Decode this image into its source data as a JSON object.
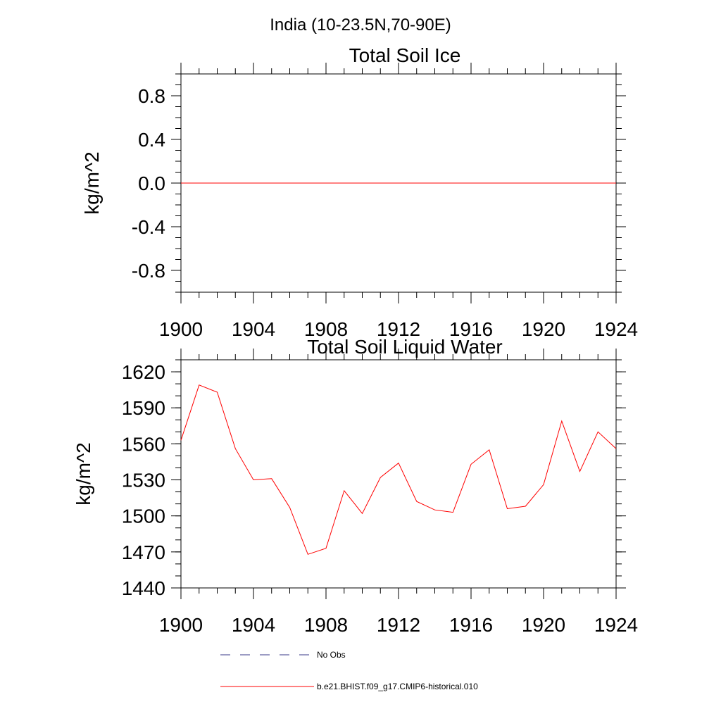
{
  "figure": {
    "suptitle": "India (10-23.5N,70-90E)"
  },
  "colors": {
    "series_line": "#ff0000",
    "obs_line": "#3a3a8a",
    "axes": "#000000"
  },
  "chart_data": [
    {
      "type": "line",
      "title": "Total Soil Ice",
      "xlabel": "",
      "ylabel": "kg/m^2",
      "xlim": [
        1900,
        1924
      ],
      "ylim": [
        -1.0,
        1.0
      ],
      "x_ticks": [
        1900,
        1904,
        1908,
        1912,
        1916,
        1920,
        1924
      ],
      "x_tick_labels": [
        "1900",
        "1904",
        "1908",
        "1912",
        "1916",
        "1920",
        "1924"
      ],
      "y_ticks": [
        -0.8,
        -0.4,
        0.0,
        0.4,
        0.8
      ],
      "y_tick_labels": [
        "-0.8",
        "-0.4",
        "0.0",
        "0.4",
        "0.8"
      ],
      "y_minor_step": 0.1,
      "x_minor_step": 1,
      "grid": false,
      "series": [
        {
          "x": [
            1900,
            1901,
            1902,
            1903,
            1904,
            1905,
            1906,
            1907,
            1908,
            1909,
            1910,
            1911,
            1912,
            1913,
            1914,
            1915,
            1916,
            1917,
            1918,
            1919,
            1920,
            1921,
            1922,
            1923,
            1924
          ],
          "values": [
            0,
            0,
            0,
            0,
            0,
            0,
            0,
            0,
            0,
            0,
            0,
            0,
            0,
            0,
            0,
            0,
            0,
            0,
            0,
            0,
            0,
            0,
            0,
            0,
            0
          ]
        }
      ]
    },
    {
      "type": "line",
      "title": "Total Soil Liquid Water",
      "xlabel": "",
      "ylabel": "kg/m^2",
      "xlim": [
        1900,
        1924
      ],
      "ylim": [
        1440,
        1630
      ],
      "x_ticks": [
        1900,
        1904,
        1908,
        1912,
        1916,
        1920,
        1924
      ],
      "x_tick_labels": [
        "1900",
        "1904",
        "1908",
        "1912",
        "1916",
        "1920",
        "1924"
      ],
      "y_ticks": [
        1440,
        1470,
        1500,
        1530,
        1560,
        1590,
        1620
      ],
      "y_tick_labels": [
        "1440",
        "1470",
        "1500",
        "1530",
        "1560",
        "1590",
        "1620"
      ],
      "y_minor_step": 10,
      "x_minor_step": 1,
      "grid": false,
      "series": [
        {
          "x": [
            1900,
            1901,
            1902,
            1903,
            1904,
            1905,
            1906,
            1907,
            1908,
            1909,
            1910,
            1911,
            1912,
            1913,
            1914,
            1915,
            1916,
            1917,
            1918,
            1919,
            1920,
            1921,
            1922,
            1923,
            1924
          ],
          "values": [
            1563,
            1609,
            1603,
            1556,
            1530,
            1531,
            1507,
            1468,
            1473,
            1521,
            1502,
            1532,
            1544,
            1512,
            1505,
            1503,
            1543,
            1555,
            1506,
            1508,
            1526,
            1579,
            1537,
            1570,
            1556
          ]
        }
      ]
    }
  ],
  "legend": {
    "placement": "bottom",
    "items": [
      {
        "label": "No Obs",
        "style": "dashed"
      },
      {
        "label": "b.e21.BHIST.f09_g17.CMIP6-historical.010",
        "style": "solid"
      }
    ]
  }
}
